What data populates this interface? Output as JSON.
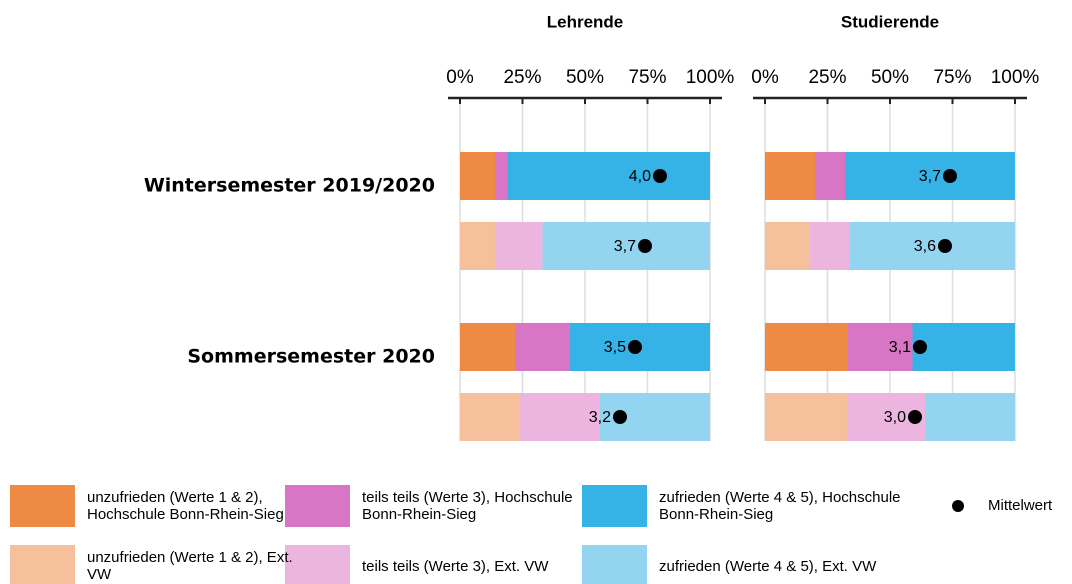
{
  "chart_data": {
    "type": "bar",
    "orientation": "horizontal",
    "stacked": true,
    "panels": [
      "Lehrende",
      "Studierende"
    ],
    "categories": [
      "Wintersemester 2019/2020",
      null,
      "Sommersemester 2020",
      null
    ],
    "xlim": [
      0,
      100
    ],
    "xticks": [
      {
        "value": 0,
        "label": "0%"
      },
      {
        "value": 25,
        "label": "25%"
      },
      {
        "value": 50,
        "label": "50%"
      },
      {
        "value": 75,
        "label": "75%"
      },
      {
        "value": 100,
        "label": "100%"
      }
    ],
    "grid": true,
    "series": [
      {
        "name": "unzufrieden (Werte 1 & 2), Hochschule Bonn-Rhein-Sieg",
        "color": "#ee8a43",
        "values": [
          [
            14,
            null,
            22,
            null
          ],
          [
            20,
            null,
            33,
            null
          ]
        ]
      },
      {
        "name": "teils teils (Werte 3), Hochschule Bonn-Rhein-Sieg",
        "color": "#d975c5",
        "values": [
          [
            5,
            null,
            22,
            null
          ],
          [
            12,
            null,
            26,
            null
          ]
        ]
      },
      {
        "name": "zufrieden (Werte 4 & 5), Hochschule Bonn-Rhein-Sieg",
        "color": "#35b3e6",
        "values": [
          [
            81,
            null,
            56,
            null
          ],
          [
            68,
            null,
            41,
            null
          ]
        ]
      },
      {
        "name": "unzufrieden (Werte 1 & 2), Ext. VW",
        "color": "#f5c09b",
        "values": [
          [
            null,
            14,
            null,
            24
          ],
          [
            null,
            18,
            null,
            33
          ]
        ]
      },
      {
        "name": "teils teils (Werte 3), Ext. VW",
        "color": "#ecb5df",
        "values": [
          [
            null,
            19,
            null,
            32
          ],
          [
            null,
            16,
            null,
            31
          ]
        ]
      },
      {
        "name": "zufrieden (Werte 4 & 5), Ext. VW",
        "color": "#93d4f1",
        "values": [
          [
            null,
            67,
            null,
            44
          ],
          [
            null,
            66,
            null,
            36
          ]
        ]
      }
    ],
    "mean": {
      "name": "Mittelwert",
      "color": "#000000",
      "xlim": [
        0,
        5
      ],
      "values": [
        [
          4.0,
          3.7,
          3.5,
          3.2
        ],
        [
          3.7,
          3.6,
          3.1,
          3.0
        ]
      ],
      "value_labels": [
        [
          "4,0",
          "3,7",
          "3,5",
          "3,2"
        ],
        [
          "3,7",
          "3,6",
          "3,1",
          "3,0"
        ]
      ]
    }
  }
}
